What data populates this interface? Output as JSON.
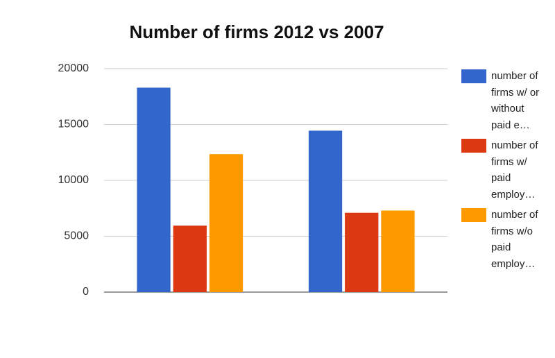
{
  "chart_data": {
    "type": "bar",
    "title": "Number of firms 2012 vs 2007",
    "categories": [
      null,
      null
    ],
    "series": [
      {
        "name": "number of firms w/ or without paid e…",
        "color": "#3366cc",
        "values": [
          18300,
          14450
        ]
      },
      {
        "name": "number of firms w/ paid employ…",
        "color": "#dc3912",
        "values": [
          5950,
          7100
        ]
      },
      {
        "name": "number of firms w/o paid employ…",
        "color": "#ff9900",
        "values": [
          12350,
          7300
        ]
      }
    ],
    "ylim": [
      0,
      20000
    ],
    "yticks": [
      0,
      5000,
      10000,
      15000,
      20000
    ],
    "grid": true,
    "legend": "right"
  }
}
